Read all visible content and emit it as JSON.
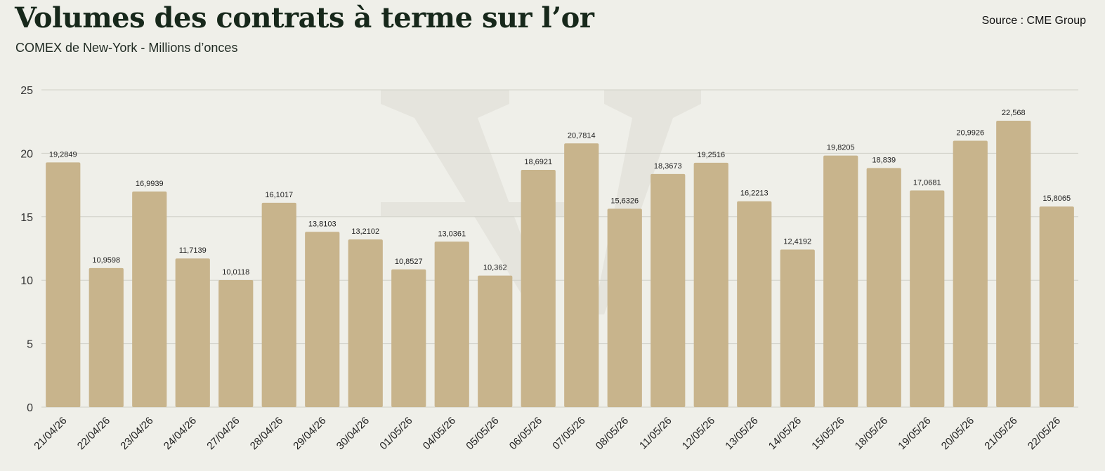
{
  "header": {
    "title": "Volumes des contrats à terme sur l’or",
    "subtitle": "COMEX de New-York - Millions d’onces",
    "source": "Source : CME Group"
  },
  "colors": {
    "background": "#efefe9",
    "bar": "#c8b48c",
    "grid": "#d0d0c8",
    "title": "#17281b"
  },
  "chart_data": {
    "type": "bar",
    "title": "Volumes des contrats à terme sur l’or",
    "subtitle": "COMEX de New-York - Millions d’onces",
    "xlabel": "",
    "ylabel": "",
    "ylim": [
      0,
      25
    ],
    "yticks": [
      0,
      5,
      10,
      15,
      20,
      25
    ],
    "grid": true,
    "legend": "none",
    "categories": [
      "21/04/26",
      "22/04/26",
      "23/04/26",
      "24/04/26",
      "27/04/26",
      "28/04/26",
      "29/04/26",
      "30/04/26",
      "01/05/26",
      "04/05/26",
      "05/05/26",
      "06/05/26",
      "07/05/26",
      "08/05/26",
      "11/05/26",
      "12/05/26",
      "13/05/26",
      "14/05/26",
      "15/05/26",
      "18/05/26",
      "19/05/26",
      "20/05/26",
      "21/05/26",
      "22/05/26"
    ],
    "values": [
      19.2849,
      10.9598,
      16.9939,
      11.7139,
      10.0118,
      16.1017,
      13.8103,
      13.2102,
      10.8527,
      13.0361,
      10.362,
      18.6921,
      20.7814,
      15.6326,
      18.3673,
      19.2516,
      16.2213,
      12.4192,
      19.8205,
      18.839,
      17.0681,
      20.9926,
      22.568,
      15.8065
    ],
    "value_labels": [
      "19,2849",
      "10,9598",
      "16,9939",
      "11,7139",
      "10,0118",
      "16,1017",
      "13,8103",
      "13,2102",
      "10,8527",
      "13,0361",
      "10,362",
      "18,6921",
      "20,7814",
      "15,6326",
      "18,3673",
      "19,2516",
      "16,2213",
      "12,4192",
      "19,8205",
      "18,839",
      "17,0681",
      "20,9926",
      "22,568",
      "15,8065"
    ]
  }
}
